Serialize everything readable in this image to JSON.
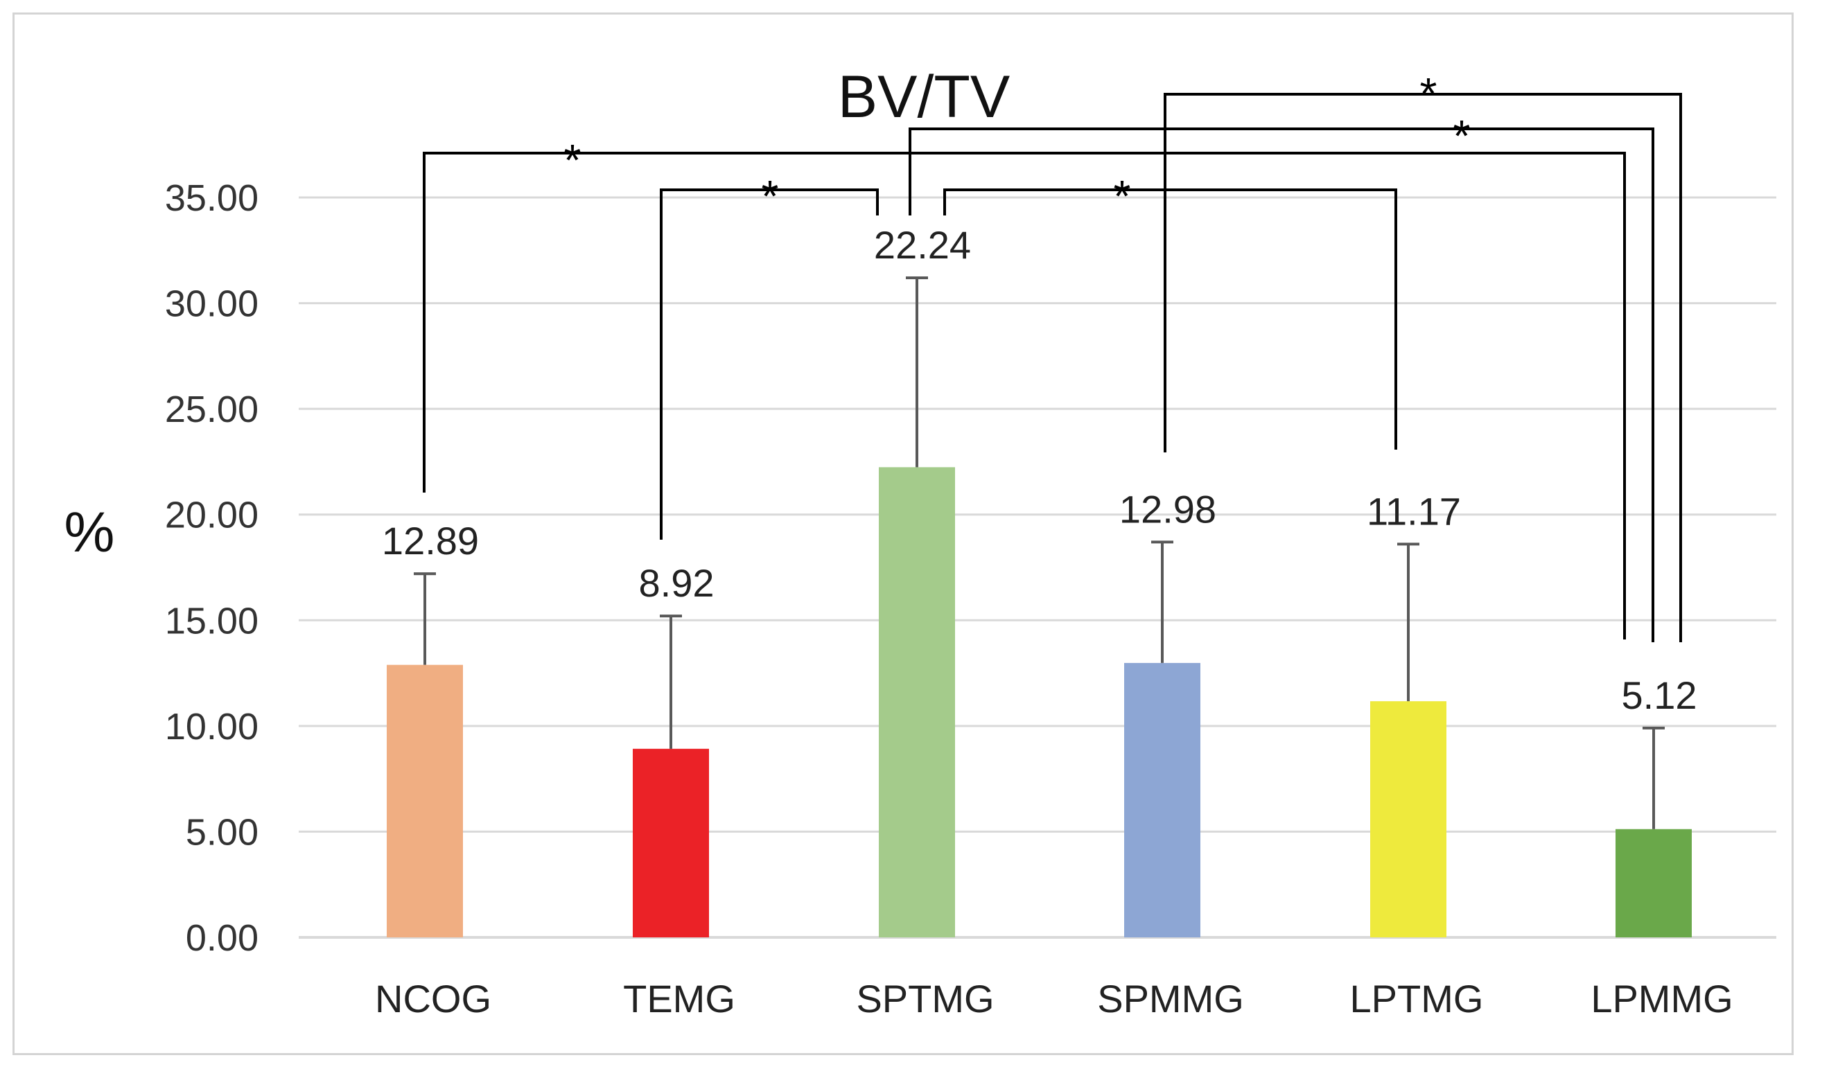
{
  "chart_data": {
    "type": "bar",
    "title": "BV/TV",
    "ylabel": "%",
    "xlabel": "",
    "ylim": [
      0,
      35
    ],
    "yticks": [
      0,
      5,
      10,
      15,
      20,
      25,
      30,
      35
    ],
    "ytick_labels": [
      "0.00",
      "5.00",
      "10.00",
      "15.00",
      "20.00",
      "25.00",
      "30.00",
      "35.00"
    ],
    "grid": true,
    "categories": [
      "NCOG",
      "TEMG",
      "SPTMG",
      "SPMMG",
      "LPTMG",
      "LPMMG"
    ],
    "values": [
      12.89,
      8.92,
      22.24,
      12.98,
      11.17,
      5.12
    ],
    "value_labels": [
      "12.89",
      "8.92",
      "22.24",
      "12.98",
      "11.17",
      "5.12"
    ],
    "error_upper": [
      17.2,
      15.2,
      31.2,
      18.7,
      18.6,
      9.9
    ],
    "colors": [
      "#F0AE82",
      "#EB2227",
      "#A4CB8B",
      "#8DA6D4",
      "#EEEA3D",
      "#6AA84A"
    ],
    "significance": [
      {
        "from": "NCOG",
        "to": "LPMMG",
        "label": "*"
      },
      {
        "from": "TEMG",
        "to": "SPTMG",
        "label": "*"
      },
      {
        "from": "SPTMG",
        "to": "LPTMG",
        "label": "*"
      },
      {
        "from": "SPTMG",
        "to": "LPMMG",
        "label": "*"
      },
      {
        "from": "SPMMG",
        "to": "LPMMG",
        "label": "*"
      }
    ]
  }
}
